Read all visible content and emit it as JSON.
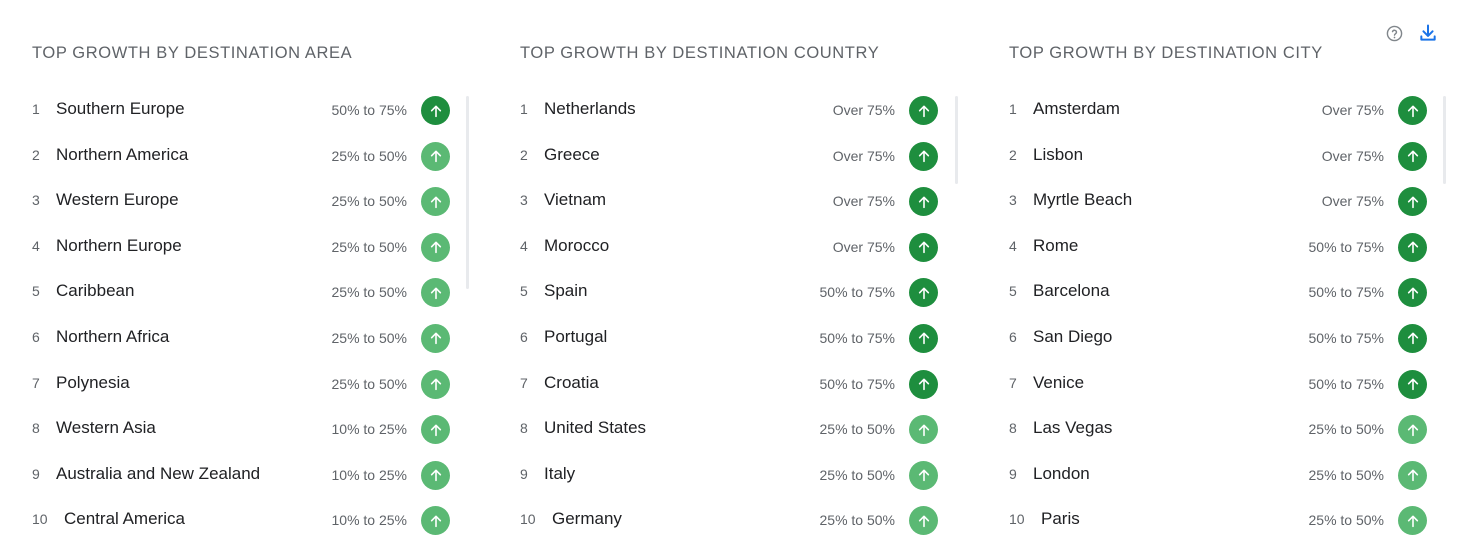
{
  "colors": {
    "dark_green": "#1e8e3e",
    "light_green": "#5bb974"
  },
  "actions": {
    "help_icon": "help-circle-icon",
    "download_icon": "download-icon"
  },
  "columns": [
    {
      "title": "TOP GROWTH BY DESTINATION AREA",
      "rows": [
        {
          "rank": "1",
          "name": "Southern Europe",
          "range": "50% to 75%",
          "level": "dark"
        },
        {
          "rank": "2",
          "name": "Northern America",
          "range": "25% to 50%",
          "level": "light"
        },
        {
          "rank": "3",
          "name": "Western Europe",
          "range": "25% to 50%",
          "level": "light"
        },
        {
          "rank": "4",
          "name": "Northern Europe",
          "range": "25% to 50%",
          "level": "light"
        },
        {
          "rank": "5",
          "name": "Caribbean",
          "range": "25% to 50%",
          "level": "light"
        },
        {
          "rank": "6",
          "name": "Northern Africa",
          "range": "25% to 50%",
          "level": "light"
        },
        {
          "rank": "7",
          "name": "Polynesia",
          "range": "25% to 50%",
          "level": "light"
        },
        {
          "rank": "8",
          "name": "Western Asia",
          "range": "10% to 25%",
          "level": "light"
        },
        {
          "rank": "9",
          "name": "Australia and New Zealand",
          "range": "10% to 25%",
          "level": "light"
        },
        {
          "rank": "10",
          "name": "Central America",
          "range": "10% to 25%",
          "level": "light"
        }
      ]
    },
    {
      "title": "TOP GROWTH BY DESTINATION COUNTRY",
      "rows": [
        {
          "rank": "1",
          "name": "Netherlands",
          "range": "Over 75%",
          "level": "dark"
        },
        {
          "rank": "2",
          "name": "Greece",
          "range": "Over 75%",
          "level": "dark"
        },
        {
          "rank": "3",
          "name": "Vietnam",
          "range": "Over 75%",
          "level": "dark"
        },
        {
          "rank": "4",
          "name": "Morocco",
          "range": "Over 75%",
          "level": "dark"
        },
        {
          "rank": "5",
          "name": "Spain",
          "range": "50% to 75%",
          "level": "dark"
        },
        {
          "rank": "6",
          "name": "Portugal",
          "range": "50% to 75%",
          "level": "dark"
        },
        {
          "rank": "7",
          "name": "Croatia",
          "range": "50% to 75%",
          "level": "dark"
        },
        {
          "rank": "8",
          "name": "United States",
          "range": "25% to 50%",
          "level": "light"
        },
        {
          "rank": "9",
          "name": "Italy",
          "range": "25% to 50%",
          "level": "light"
        },
        {
          "rank": "10",
          "name": "Germany",
          "range": "25% to 50%",
          "level": "light"
        }
      ]
    },
    {
      "title": "TOP GROWTH BY DESTINATION CITY",
      "rows": [
        {
          "rank": "1",
          "name": "Amsterdam",
          "range": "Over 75%",
          "level": "dark"
        },
        {
          "rank": "2",
          "name": "Lisbon",
          "range": "Over 75%",
          "level": "dark"
        },
        {
          "rank": "3",
          "name": "Myrtle Beach",
          "range": "Over 75%",
          "level": "dark"
        },
        {
          "rank": "4",
          "name": "Rome",
          "range": "50% to 75%",
          "level": "dark"
        },
        {
          "rank": "5",
          "name": "Barcelona",
          "range": "50% to 75%",
          "level": "dark"
        },
        {
          "rank": "6",
          "name": "San Diego",
          "range": "50% to 75%",
          "level": "dark"
        },
        {
          "rank": "7",
          "name": "Venice",
          "range": "50% to 75%",
          "level": "dark"
        },
        {
          "rank": "8",
          "name": "Las Vegas",
          "range": "25% to 50%",
          "level": "light"
        },
        {
          "rank": "9",
          "name": "London",
          "range": "25% to 50%",
          "level": "light"
        },
        {
          "rank": "10",
          "name": "Paris",
          "range": "25% to 50%",
          "level": "light"
        }
      ]
    }
  ]
}
